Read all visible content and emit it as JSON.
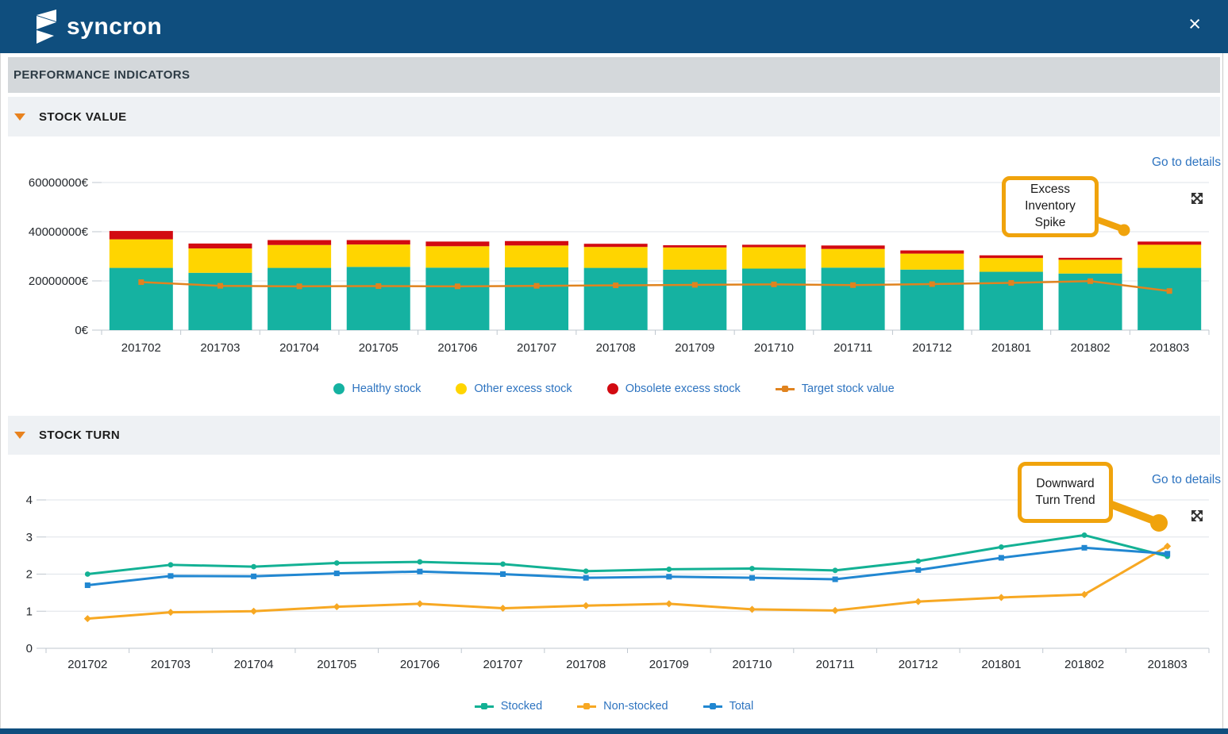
{
  "brand": "syncron",
  "window": {
    "close_icon": "×"
  },
  "performance_header": "PERFORMANCE INDICATORS",
  "sections": [
    {
      "title": "STOCK VALUE",
      "details_link": "Go to details",
      "callout_text": "Excess Inventory Spike"
    },
    {
      "title": "STOCK TURN",
      "details_link": "Go to details",
      "callout_text": "Downward Turn Trend"
    }
  ],
  "colors": {
    "header_blue": "#0f4e7e",
    "link_blue": "#2e74c0",
    "callout_orange": "#f0a30c",
    "section_triangle_orange": "#e8821e",
    "healthy_teal": "#15b2a1",
    "excess_yellow": "#ffd500",
    "obsolete_red": "#d20a11",
    "target_orange": "#e0831f",
    "stocked_teal": "#13b194",
    "nonstocked_orange": "#f7a823",
    "total_blue": "#2187d1"
  },
  "chart_data": [
    {
      "type": "bar",
      "title": "STOCK VALUE",
      "categories": [
        "201702",
        "201703",
        "201704",
        "201705",
        "201706",
        "201707",
        "201708",
        "201709",
        "201710",
        "201711",
        "201712",
        "201801",
        "201802",
        "201803"
      ],
      "series": [
        {
          "name": "Healthy stock",
          "role": "bar",
          "color": "#15b2a1",
          "values": [
            25300000,
            23300000,
            25300000,
            25700000,
            25400000,
            25500000,
            25300000,
            24600000,
            25000000,
            25400000,
            24600000,
            23700000,
            23000000,
            25300000
          ]
        },
        {
          "name": "Other excess stock",
          "role": "bar",
          "color": "#ffd500",
          "values": [
            11600000,
            9900000,
            9300000,
            9100000,
            8700000,
            8900000,
            8500000,
            9000000,
            8700000,
            7600000,
            6500000,
            5600000,
            5600000,
            9400000
          ]
        },
        {
          "name": "Obsolete excess stock",
          "role": "bar",
          "color": "#d20a11",
          "values": [
            3400000,
            2000000,
            2000000,
            1800000,
            1900000,
            1800000,
            1300000,
            900000,
            1000000,
            1400000,
            1300000,
            1100000,
            800000,
            1300000
          ]
        },
        {
          "name": "Target stock value",
          "role": "line",
          "color": "#e0831f",
          "values": [
            19500000,
            18000000,
            17800000,
            17900000,
            17800000,
            18000000,
            18200000,
            18400000,
            18600000,
            18300000,
            18700000,
            19200000,
            19900000,
            15900000
          ]
        }
      ],
      "yticks": [
        0,
        20000000,
        40000000,
        60000000
      ],
      "ytick_labels": [
        "0€",
        "20000000€",
        "40000000€",
        "60000000€"
      ],
      "ylim": [
        0,
        60000000
      ],
      "grid": true,
      "legend_position": "bottom"
    },
    {
      "type": "line",
      "title": "STOCK TURN",
      "categories": [
        "201702",
        "201703",
        "201704",
        "201705",
        "201706",
        "201707",
        "201708",
        "201709",
        "201710",
        "201711",
        "201712",
        "201801",
        "201802",
        "201803"
      ],
      "series": [
        {
          "name": "Stocked",
          "color": "#13b194",
          "marker": "circle",
          "values": [
            2.0,
            2.25,
            2.2,
            2.3,
            2.33,
            2.27,
            2.08,
            2.13,
            2.15,
            2.1,
            2.35,
            2.73,
            3.05,
            2.48
          ]
        },
        {
          "name": "Non-stocked",
          "color": "#f7a823",
          "marker": "diamond",
          "values": [
            0.8,
            0.97,
            1.0,
            1.12,
            1.2,
            1.08,
            1.15,
            1.2,
            1.05,
            1.02,
            1.26,
            1.37,
            1.45,
            2.75
          ]
        },
        {
          "name": "Total",
          "color": "#2187d1",
          "marker": "square",
          "values": [
            1.7,
            1.95,
            1.94,
            2.02,
            2.07,
            2.0,
            1.9,
            1.93,
            1.9,
            1.86,
            2.11,
            2.44,
            2.71,
            2.55
          ]
        }
      ],
      "yticks": [
        0,
        1,
        2,
        3,
        4
      ],
      "ytick_labels": [
        "0",
        "1",
        "2",
        "3",
        "4"
      ],
      "ylim": [
        0,
        4
      ],
      "grid": true,
      "legend_position": "bottom"
    }
  ]
}
